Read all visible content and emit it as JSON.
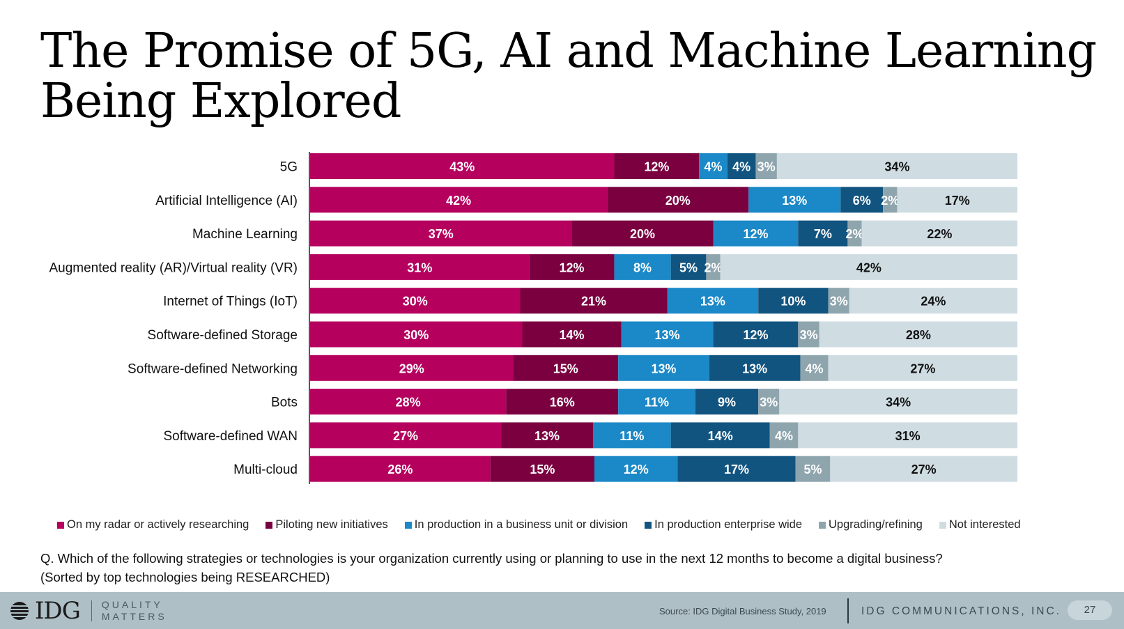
{
  "title": "The Promise of 5G, AI and Machine Learning Being Explored",
  "chart_data": {
    "type": "bar",
    "orientation": "horizontal",
    "stacked": true,
    "categories": [
      "5G",
      "Artificial Intelligence (AI)",
      "Machine Learning",
      "Augmented reality (AR)/Virtual reality (VR)",
      "Internet of Things (IoT)",
      "Software-defined Storage",
      "Software-defined Networking",
      "Bots",
      "Software-defined WAN",
      "Multi-cloud"
    ],
    "series": [
      {
        "name": "On my radar or actively researching",
        "color": "#b5005e",
        "label_color": "#ffffff",
        "values": [
          43,
          42,
          37,
          31,
          30,
          30,
          29,
          28,
          27,
          26
        ]
      },
      {
        "name": "Piloting new initiatives",
        "color": "#7a0040",
        "label_color": "#ffffff",
        "values": [
          12,
          20,
          20,
          12,
          21,
          14,
          15,
          16,
          13,
          15
        ]
      },
      {
        "name": "In production in a business unit or division",
        "color": "#1b88c7",
        "label_color": "#ffffff",
        "values": [
          4,
          13,
          12,
          8,
          13,
          13,
          13,
          11,
          11,
          12
        ]
      },
      {
        "name": "In production enterprise wide",
        "color": "#125480",
        "label_color": "#ffffff",
        "values": [
          4,
          6,
          7,
          5,
          10,
          12,
          13,
          9,
          14,
          17
        ]
      },
      {
        "name": "Upgrading/refining",
        "color": "#8fa5ae",
        "label_color": "#ffffff",
        "values": [
          3,
          2,
          2,
          2,
          3,
          3,
          4,
          3,
          4,
          5
        ]
      },
      {
        "name": "Not interested",
        "color": "#cfdde3",
        "label_color": "#111111",
        "values": [
          34,
          17,
          22,
          42,
          24,
          28,
          27,
          34,
          31,
          27
        ]
      }
    ],
    "value_suffix": "%",
    "xlim": [
      0,
      100
    ],
    "grid": false,
    "legend_position": "bottom"
  },
  "question": {
    "line1": "Q. Which of the following strategies or technologies is your organization currently using or planning to use in the next 12 months to become a digital business?",
    "line2": "(Sorted by top technologies being RESEARCHED)"
  },
  "footer": {
    "logo": "IDG",
    "tagline_line1": "QUALITY",
    "tagline_line2": "MATTERS",
    "source": "Source: IDG Digital Business Study, 2019",
    "company": "IDG COMMUNICATIONS, INC.",
    "page_number": "27"
  }
}
